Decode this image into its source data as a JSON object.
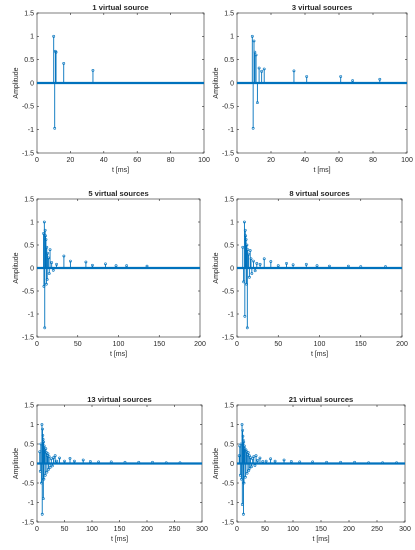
{
  "chart_data": [
    {
      "type": "stem",
      "title": "1 virtual source",
      "xlabel": "t [ms]",
      "ylabel": "Amplitude",
      "xlim": [
        0,
        100
      ],
      "ylim": [
        -1.5,
        1.5
      ],
      "xticks": [
        0,
        20,
        40,
        60,
        80,
        100
      ],
      "yticks": [
        -1.5,
        -1,
        -0.5,
        0,
        0.5,
        1,
        1.5
      ],
      "xticklabels": [
        "0",
        "20",
        "40",
        "60",
        "80",
        "100"
      ],
      "yticklabels": [
        "-1.5",
        "-1",
        "-0.5",
        "0",
        "0.5",
        "1",
        "1.5"
      ],
      "stems": [
        [
          10,
          1.0
        ],
        [
          10.6,
          -0.97
        ],
        [
          11,
          0.68
        ],
        [
          11.4,
          0.66
        ],
        [
          16,
          0.42
        ],
        [
          33.5,
          0.27
        ]
      ]
    },
    {
      "type": "stem",
      "title": "3 virtual sources",
      "xlabel": "t [ms]",
      "ylabel": "Amplitude",
      "xlim": [
        0,
        100
      ],
      "ylim": [
        -1.5,
        1.5
      ],
      "xticks": [
        0,
        20,
        40,
        60,
        80,
        100
      ],
      "yticks": [
        -1.5,
        -1,
        -0.5,
        0,
        0.5,
        1,
        1.5
      ],
      "xticklabels": [
        "0",
        "20",
        "40",
        "60",
        "80",
        "100"
      ],
      "yticklabels": [
        "-1.5",
        "-1",
        "-0.5",
        "0",
        "0.5",
        "1",
        "1.5"
      ],
      "stems": [
        [
          9,
          1.0
        ],
        [
          9.5,
          -0.97
        ],
        [
          10,
          0.9
        ],
        [
          10.5,
          0.66
        ],
        [
          11.2,
          0.6
        ],
        [
          12,
          -0.42
        ],
        [
          13,
          0.32
        ],
        [
          14.5,
          0.25
        ],
        [
          16,
          0.3
        ],
        [
          33.5,
          0.26
        ],
        [
          41,
          0.14
        ],
        [
          61,
          0.14
        ],
        [
          68,
          0.05
        ],
        [
          84,
          0.08
        ]
      ]
    },
    {
      "type": "stem",
      "title": "5 virtual sources",
      "xlabel": "t [ms]",
      "ylabel": "Amplitude",
      "xlim": [
        0,
        200
      ],
      "ylim": [
        -1.5,
        1.5
      ],
      "xticks": [
        0,
        50,
        100,
        150,
        200
      ],
      "yticks": [
        -1.5,
        -1,
        -0.5,
        0,
        0.5,
        1,
        1.5
      ],
      "xticklabels": [
        "0",
        "50",
        "100",
        "150",
        "200"
      ],
      "yticklabels": [
        "-1.5",
        "-1",
        "-0.5",
        "0",
        "0.5",
        "1",
        "1.5"
      ],
      "stems": [
        [
          8,
          0.75
        ],
        [
          8.5,
          -0.4
        ],
        [
          9,
          1.0
        ],
        [
          9.5,
          -1.3
        ],
        [
          10,
          0.82
        ],
        [
          10.5,
          0.7
        ],
        [
          11,
          0.62
        ],
        [
          11.5,
          -0.35
        ],
        [
          12,
          0.45
        ],
        [
          12.5,
          -0.25
        ],
        [
          13,
          0.32
        ],
        [
          14,
          0.22
        ],
        [
          15,
          -0.12
        ],
        [
          16,
          0.4
        ],
        [
          18,
          0.12
        ],
        [
          20,
          -0.05
        ],
        [
          24,
          0.08
        ],
        [
          33,
          0.26
        ],
        [
          41,
          0.15
        ],
        [
          60,
          0.13
        ],
        [
          68,
          0.06
        ],
        [
          84,
          0.09
        ],
        [
          97,
          0.05
        ],
        [
          110,
          0.05
        ],
        [
          135,
          0.04
        ]
      ]
    },
    {
      "type": "stem",
      "title": "8 virtual sources",
      "xlabel": "t [ms]",
      "ylabel": "Amplitude",
      "xlim": [
        0,
        200
      ],
      "ylim": [
        -1.5,
        1.5
      ],
      "xticks": [
        0,
        50,
        100,
        150,
        200
      ],
      "yticks": [
        -1.5,
        -1,
        -0.5,
        0,
        0.5,
        1,
        1.5
      ],
      "xticklabels": [
        "0",
        "50",
        "100",
        "150",
        "200"
      ],
      "yticklabels": [
        "-1.5",
        "-1",
        "-0.5",
        "0",
        "0.5",
        "1",
        "1.5"
      ],
      "stems": [
        [
          7,
          0.45
        ],
        [
          8,
          -0.3
        ],
        [
          9,
          1.0
        ],
        [
          9.5,
          -1.05
        ],
        [
          10,
          0.82
        ],
        [
          10.5,
          0.7
        ],
        [
          11,
          0.62
        ],
        [
          11.5,
          -0.35
        ],
        [
          12,
          0.5
        ],
        [
          12.5,
          -1.3
        ],
        [
          13,
          0.4
        ],
        [
          14,
          0.3
        ],
        [
          15,
          -0.2
        ],
        [
          16,
          0.38
        ],
        [
          17,
          0.2
        ],
        [
          18,
          -0.12
        ],
        [
          20,
          0.15
        ],
        [
          22,
          -0.06
        ],
        [
          24,
          0.1
        ],
        [
          28,
          0.08
        ],
        [
          33,
          0.2
        ],
        [
          41,
          0.14
        ],
        [
          50,
          0.05
        ],
        [
          60,
          0.1
        ],
        [
          68,
          0.07
        ],
        [
          84,
          0.08
        ],
        [
          97,
          0.05
        ],
        [
          112,
          0.04
        ],
        [
          135,
          0.04
        ],
        [
          150,
          0.03
        ],
        [
          180,
          0.03
        ]
      ]
    },
    {
      "type": "stem",
      "title": "13 virtual sources",
      "xlabel": "t [ms]",
      "ylabel": "Amplitude",
      "xlim": [
        0,
        300
      ],
      "ylim": [
        -1.5,
        1.5
      ],
      "xticks": [
        0,
        50,
        100,
        150,
        200,
        250,
        300
      ],
      "yticks": [
        -1.5,
        -1,
        -0.5,
        0,
        0.5,
        1,
        1.5
      ],
      "xticklabels": [
        "0",
        "50",
        "100",
        "150",
        "200",
        "250",
        "300"
      ],
      "yticklabels": [
        "-1.5",
        "-1",
        "-0.5",
        "0",
        "0.5",
        "1",
        "1.5"
      ],
      "stems": [
        [
          5,
          0.3
        ],
        [
          6,
          -0.2
        ],
        [
          7,
          0.5
        ],
        [
          8,
          -0.5
        ],
        [
          9,
          1.0
        ],
        [
          9.5,
          -1.3
        ],
        [
          10,
          0.88
        ],
        [
          10.5,
          0.72
        ],
        [
          11,
          0.62
        ],
        [
          11.5,
          -0.9
        ],
        [
          12,
          0.55
        ],
        [
          12.5,
          -0.4
        ],
        [
          13,
          0.45
        ],
        [
          14,
          0.35
        ],
        [
          15,
          -0.3
        ],
        [
          16,
          0.38
        ],
        [
          17,
          0.28
        ],
        [
          18,
          -0.22
        ],
        [
          19,
          0.2
        ],
        [
          20,
          0.25
        ],
        [
          21,
          -0.15
        ],
        [
          22,
          0.18
        ],
        [
          24,
          -0.1
        ],
        [
          26,
          0.12
        ],
        [
          28,
          -0.06
        ],
        [
          30,
          0.15
        ],
        [
          33,
          0.2
        ],
        [
          36,
          0.06
        ],
        [
          41,
          0.14
        ],
        [
          50,
          0.06
        ],
        [
          60,
          0.13
        ],
        [
          68,
          0.06
        ],
        [
          84,
          0.09
        ],
        [
          97,
          0.05
        ],
        [
          112,
          0.04
        ],
        [
          135,
          0.04
        ],
        [
          160,
          0.03
        ],
        [
          185,
          0.03
        ],
        [
          210,
          0.03
        ],
        [
          235,
          0.02
        ],
        [
          260,
          0.02
        ]
      ]
    },
    {
      "type": "stem",
      "title": "21 virtual sources",
      "xlabel": "t [ms]",
      "ylabel": "Amplitude",
      "xlim": [
        0,
        300
      ],
      "ylim": [
        -1.5,
        1.5
      ],
      "xticks": [
        0,
        50,
        100,
        150,
        200,
        250,
        300
      ],
      "yticks": [
        -1.5,
        -1,
        -0.5,
        0,
        0.5,
        1,
        1.5
      ],
      "xticklabels": [
        "0",
        "50",
        "100",
        "150",
        "200",
        "250",
        "300"
      ],
      "yticklabels": [
        "-1.5",
        "-1",
        "-0.5",
        "0",
        "0.5",
        "1",
        "1.5"
      ],
      "stems": [
        [
          4,
          0.2
        ],
        [
          5,
          0.45
        ],
        [
          6,
          -0.3
        ],
        [
          7,
          0.5
        ],
        [
          8,
          -0.4
        ],
        [
          9,
          1.0
        ],
        [
          9.5,
          -1.05
        ],
        [
          10,
          0.85
        ],
        [
          10.5,
          0.7
        ],
        [
          11,
          0.6
        ],
        [
          11.5,
          -1.3
        ],
        [
          12,
          0.55
        ],
        [
          12.5,
          -0.5
        ],
        [
          13,
          0.45
        ],
        [
          14,
          0.38
        ],
        [
          15,
          -0.35
        ],
        [
          16,
          0.35
        ],
        [
          17,
          0.3
        ],
        [
          18,
          -0.25
        ],
        [
          19,
          0.22
        ],
        [
          20,
          0.28
        ],
        [
          21,
          -0.18
        ],
        [
          22,
          0.2
        ],
        [
          23,
          -0.12
        ],
        [
          24,
          0.15
        ],
        [
          26,
          -0.08
        ],
        [
          28,
          0.12
        ],
        [
          30,
          0.18
        ],
        [
          32,
          -0.05
        ],
        [
          34,
          0.2
        ],
        [
          37,
          0.08
        ],
        [
          41,
          0.14
        ],
        [
          46,
          0.05
        ],
        [
          52,
          0.06
        ],
        [
          60,
          0.12
        ],
        [
          68,
          0.06
        ],
        [
          84,
          0.09
        ],
        [
          97,
          0.05
        ],
        [
          112,
          0.04
        ],
        [
          135,
          0.04
        ],
        [
          160,
          0.03
        ],
        [
          185,
          0.03
        ],
        [
          210,
          0.03
        ],
        [
          235,
          0.02
        ],
        [
          260,
          0.02
        ],
        [
          285,
          0.02
        ]
      ]
    }
  ]
}
